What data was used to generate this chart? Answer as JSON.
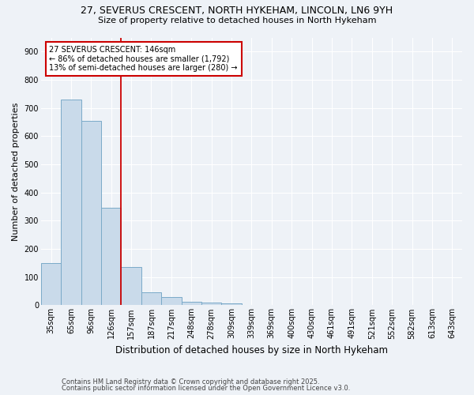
{
  "title_line1": "27, SEVERUS CRESCENT, NORTH HYKEHAM, LINCOLN, LN6 9YH",
  "title_line2": "Size of property relative to detached houses in North Hykeham",
  "xlabel": "Distribution of detached houses by size in North Hykeham",
  "ylabel": "Number of detached properties",
  "categories": [
    "35sqm",
    "65sqm",
    "96sqm",
    "126sqm",
    "157sqm",
    "187sqm",
    "217sqm",
    "248sqm",
    "278sqm",
    "309sqm",
    "339sqm",
    "369sqm",
    "400sqm",
    "430sqm",
    "461sqm",
    "491sqm",
    "521sqm",
    "552sqm",
    "582sqm",
    "613sqm",
    "643sqm"
  ],
  "values": [
    150,
    730,
    655,
    345,
    135,
    45,
    30,
    12,
    10,
    8,
    0,
    0,
    0,
    0,
    0,
    0,
    0,
    0,
    0,
    0,
    0
  ],
  "bar_color": "#c9daea",
  "bar_edge_color": "#7aaac8",
  "vline_color": "#cc0000",
  "vline_x_idx": 3.5,
  "ylim": [
    0,
    950
  ],
  "yticks": [
    0,
    100,
    200,
    300,
    400,
    500,
    600,
    700,
    800,
    900
  ],
  "background_color": "#eef2f7",
  "grid_color": "#ffffff",
  "annotation_text": "27 SEVERUS CRESCENT: 146sqm\n← 86% of detached houses are smaller (1,792)\n13% of semi-detached houses are larger (280) →",
  "annotation_box_facecolor": "#ffffff",
  "annotation_box_edgecolor": "#cc0000",
  "footnote_line1": "Contains HM Land Registry data © Crown copyright and database right 2025.",
  "footnote_line2": "Contains public sector information licensed under the Open Government Licence v3.0.",
  "title1_fontsize": 9,
  "title2_fontsize": 8,
  "tick_fontsize": 7,
  "ylabel_fontsize": 8,
  "xlabel_fontsize": 8.5,
  "annot_fontsize": 7,
  "footnote_fontsize": 6
}
